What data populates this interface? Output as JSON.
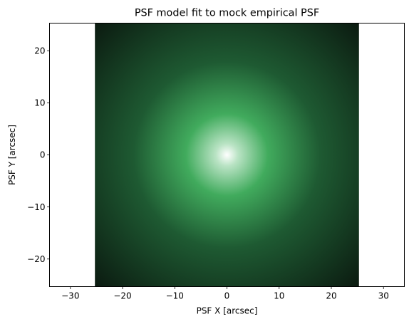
{
  "chart_data": {
    "type": "heatmap",
    "title": "PSF model fit to mock empirical PSF",
    "xlabel": "PSF X [arcsec]",
    "ylabel": "PSF Y [arcsec]",
    "xlim": [
      -34.0,
      34.0
    ],
    "ylim": [
      -25.3,
      25.3
    ],
    "image_extent": {
      "x": [
        -25.3,
        25.3
      ],
      "y": [
        -25.3,
        25.3
      ]
    },
    "x_ticks": [
      -30,
      -20,
      -10,
      0,
      10,
      20,
      30
    ],
    "y_ticks": [
      -20,
      -10,
      0,
      10,
      20
    ],
    "x_tick_labels": [
      "−30",
      "−20",
      "−10",
      "0",
      "10",
      "20",
      "30"
    ],
    "y_tick_labels": [
      "−20",
      "−10",
      "0",
      "10",
      "20"
    ],
    "psf_center": [
      0,
      0
    ],
    "core_fwhm_arcsec": 5,
    "colormap": [
      "#ffffff",
      "#b9e3c4",
      "#41ab5d",
      "#1e5a32",
      "#0b1a10"
    ],
    "grid": false,
    "legend": "none",
    "aspect": "equal"
  }
}
